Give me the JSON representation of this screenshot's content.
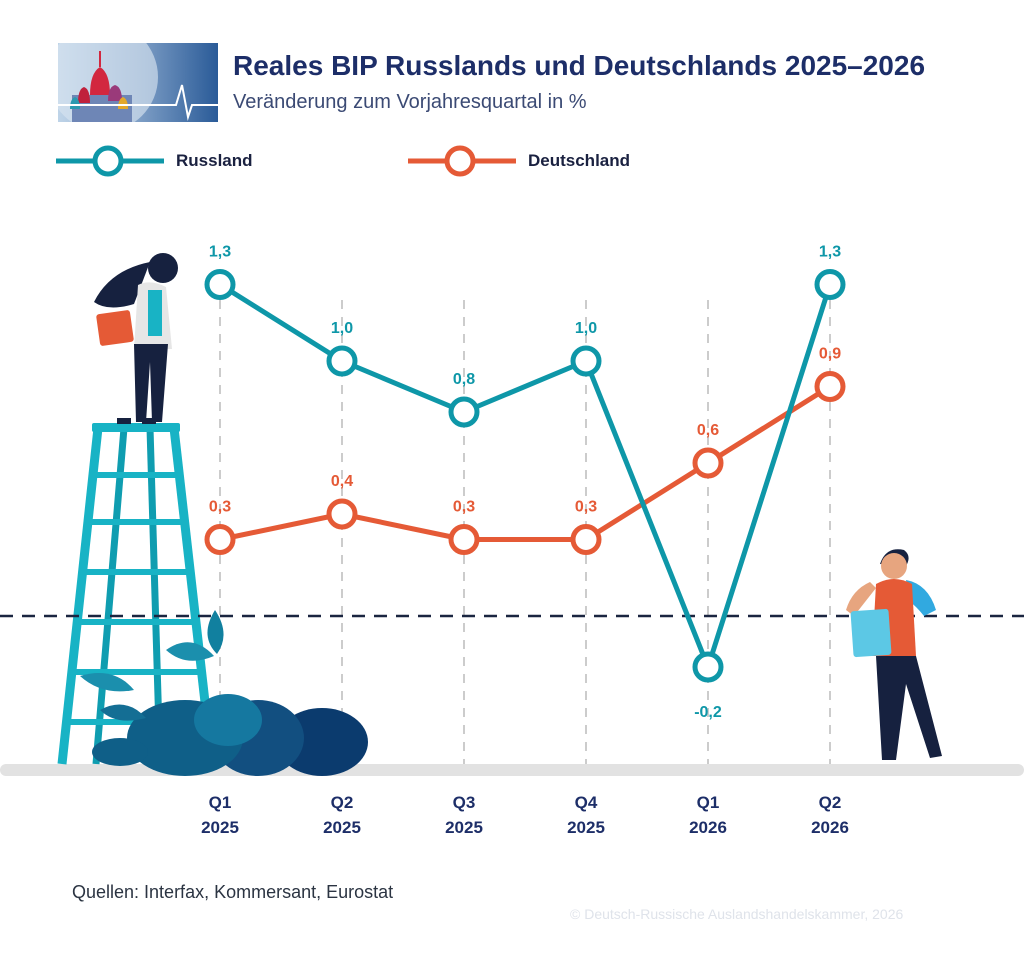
{
  "header": {
    "title": "Reales BIP Russlands und Deutschlands 2025–2026",
    "subtitle": "Veränderung zum Vorjahresquartal in %"
  },
  "footer": {
    "source": "Quellen: Interfax, Kommersant, Eurostat",
    "copyright": "© Deutsch-Russische Auslandshandelskammer, 2026"
  },
  "colors": {
    "russland": "#0e97a8",
    "deutschland": "#e55a36",
    "axis_text": "#1d2e68",
    "baseline": "#1a2540",
    "gridline": "#cccccc",
    "ground": "#e2e2e2"
  },
  "chart_data": {
    "type": "line",
    "title": "Reales BIP Russlands und Deutschlands 2025–2026",
    "subtitle": "Veränderung zum Vorjahresquartal in %",
    "categories": [
      [
        "Q1",
        "2025"
      ],
      [
        "Q2",
        "2025"
      ],
      [
        "Q3",
        "2025"
      ],
      [
        "Q4",
        "2025"
      ],
      [
        "Q1",
        "2026"
      ],
      [
        "Q2",
        "2026"
      ]
    ],
    "series": [
      {
        "name": "Russland",
        "values": [
          1.3,
          1.0,
          0.8,
          1.0,
          -0.2,
          1.3
        ],
        "labels": [
          "1,3",
          "1,0",
          "0,8",
          "1,0",
          "-0,2",
          "1,3"
        ]
      },
      {
        "name": "Deutschland",
        "values": [
          0.3,
          0.4,
          0.3,
          0.3,
          0.6,
          0.9
        ],
        "labels": [
          "0,3",
          "0,4",
          "0,3",
          "0,3",
          "0,6",
          "0,9"
        ]
      }
    ],
    "zero_line": "dashed",
    "legend": "top-left",
    "grid": "vertical dashed"
  }
}
